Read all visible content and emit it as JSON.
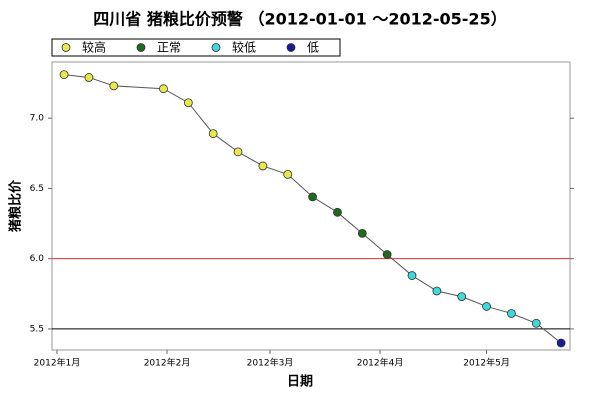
{
  "chart_data": {
    "type": "line",
    "title": "四川省 猪粮比价预警 （2012-01-01 ～2012-05-25）",
    "x_label": "日期",
    "y_label": "猪粮比价",
    "legend": [
      {
        "name": "较高",
        "color": "#e8e84a"
      },
      {
        "name": "正常",
        "color": "#1e6b1e"
      },
      {
        "name": "较低",
        "color": "#40d8d8"
      },
      {
        "name": "低",
        "color": "#1a1a9c"
      }
    ],
    "x": [
      2,
      9,
      16,
      30,
      37,
      44,
      51,
      58,
      65,
      72,
      79,
      86,
      93,
      100,
      107,
      114,
      121,
      128,
      135,
      142
    ],
    "series": [
      {
        "name": "猪粮比价",
        "color": "#555555",
        "values": [
          7.31,
          7.29,
          7.23,
          7.21,
          7.11,
          6.89,
          6.76,
          6.66,
          6.6,
          6.44,
          6.33,
          6.18,
          6.03,
          5.88,
          5.77,
          5.73,
          5.66,
          5.61,
          5.54,
          5.4
        ],
        "point_levels": [
          0,
          0,
          0,
          0,
          0,
          0,
          0,
          0,
          0,
          1,
          1,
          1,
          1,
          2,
          2,
          2,
          2,
          2,
          2,
          3
        ]
      }
    ],
    "reference_lines": [
      {
        "value": 6.0,
        "color": "#e03030"
      },
      {
        "value": 5.5,
        "color": "#000000"
      }
    ],
    "xlim": [
      -1.4,
      144.5
    ],
    "xticks": [
      {
        "value": 0,
        "label": "2012年1月"
      },
      {
        "value": 31,
        "label": "2012年2月"
      },
      {
        "value": 60,
        "label": "2012年3月"
      },
      {
        "value": 91,
        "label": "2012年4月"
      },
      {
        "value": 121,
        "label": "2012年5月"
      }
    ],
    "ylim": [
      5.35,
      7.4
    ],
    "yticks": [
      5.5,
      {
        "value": 6.0,
        "label": "6.0"
      },
      6.5,
      {
        "value": 7.0,
        "label": "7.0"
      }
    ]
  }
}
